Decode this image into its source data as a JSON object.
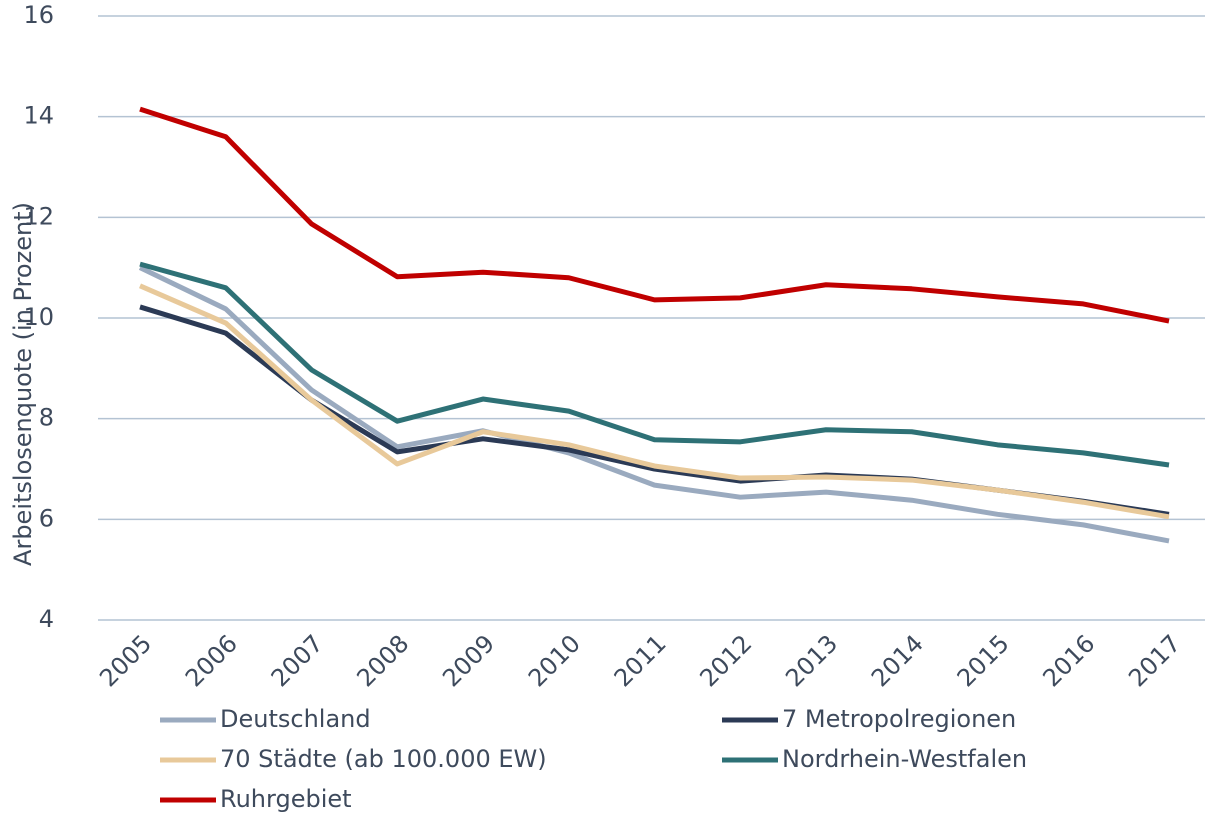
{
  "chart_data": {
    "type": "line",
    "y_label": "Arbeitslosenquote (in Prozent)",
    "categories": [
      "2005",
      "2006",
      "2007",
      "2008",
      "2009",
      "2010",
      "2011",
      "2012",
      "2013",
      "2014",
      "2015",
      "2016",
      "2017"
    ],
    "series": [
      {
        "name": "Deutschland",
        "color": "#9aaabf",
        "values": [
          11.0,
          10.18,
          8.57,
          7.44,
          7.76,
          7.32,
          6.68,
          6.44,
          6.54,
          6.38,
          6.1,
          5.89,
          5.57
        ]
      },
      {
        "name": "7 Metropolregionen",
        "color": "#2b3a55",
        "values": [
          10.22,
          9.7,
          8.37,
          7.34,
          7.6,
          7.38,
          7.0,
          6.76,
          6.88,
          6.8,
          6.58,
          6.36,
          6.1
        ]
      },
      {
        "name": "70 Städte (ab 100.000 EW)",
        "color": "#e8c99a",
        "values": [
          10.64,
          9.9,
          8.37,
          7.1,
          7.74,
          7.48,
          7.06,
          6.82,
          6.84,
          6.78,
          6.58,
          6.34,
          6.05
        ]
      },
      {
        "name": "Nordrhein-Westfalen",
        "color": "#2e7176",
        "values": [
          11.07,
          10.6,
          8.97,
          7.95,
          8.39,
          8.15,
          7.58,
          7.54,
          7.78,
          7.74,
          7.48,
          7.32,
          7.08
        ]
      },
      {
        "name": "Ruhrgebiet",
        "color": "#c00000",
        "values": [
          14.15,
          13.6,
          11.87,
          10.82,
          10.91,
          10.8,
          10.36,
          10.4,
          10.66,
          10.58,
          10.42,
          10.28,
          9.94
        ]
      }
    ],
    "ylim": [
      4,
      16
    ],
    "yticks": [
      4,
      6,
      8,
      10,
      12,
      14,
      16
    ],
    "grid": true,
    "legend": "bottom"
  }
}
